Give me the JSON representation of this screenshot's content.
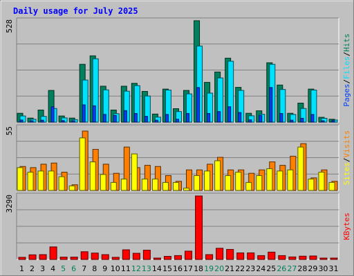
{
  "chart_data": {
    "title": "Daily usage for July 2025",
    "type": "bar",
    "categories": [
      "1",
      "2",
      "3",
      "4",
      "5",
      "6",
      "7",
      "8",
      "9",
      "10",
      "11",
      "12",
      "13",
      "14",
      "15",
      "16",
      "17",
      "18",
      "19",
      "20",
      "21",
      "22",
      "23",
      "24",
      "25",
      "26",
      "27",
      "28",
      "29",
      "30",
      "31"
    ],
    "weekend_days": [
      "5",
      "6",
      "12",
      "13",
      "19",
      "20",
      "26",
      "27"
    ],
    "panels": [
      {
        "name": "hits-files-pages",
        "ymax_label": "528",
        "ylim": [
          0,
          528
        ],
        "series": [
          {
            "name": "Hits",
            "color": "#00805c",
            "values": [
              46,
              21,
              63,
              165,
              32,
              21,
              301,
              345,
              187,
              63,
              187,
              202,
              160,
              42,
              172,
              70,
              165,
              528,
              207,
              261,
              333,
              181,
              46,
              59,
              309,
              193,
              46,
              99,
              172,
              25,
              15
            ]
          },
          {
            "name": "Files",
            "color": "#00e0ff",
            "values": [
              32,
              15,
              30,
              71,
              22,
              13,
              219,
              330,
              168,
              44,
              161,
              190,
              136,
              26,
              167,
              55,
              147,
              396,
              151,
              230,
              317,
              165,
              33,
              41,
              301,
              170,
              40,
              71,
              167,
              20,
              11
            ]
          },
          {
            "name": "Pages",
            "color": "#0040ff",
            "values": [
              11,
              5,
              10,
              80,
              8,
              4,
              90,
              85,
              40,
              35,
              60,
              45,
              30,
              10,
              40,
              15,
              45,
              180,
              45,
              55,
              80,
              50,
              12,
              35,
              180,
              45,
              10,
              20,
              40,
              6,
              3
            ]
          }
        ],
        "legend": [
          "Pages",
          "Files",
          "Hits"
        ]
      },
      {
        "name": "visits-sites",
        "ymax_label": "55",
        "ylim": [
          0,
          55
        ],
        "series": [
          {
            "name": "Visits",
            "color": "#ff8000",
            "values": [
              21,
              20,
              23,
              24,
              16,
              5,
              52,
              36,
              23,
              15,
              38,
              20,
              22,
              21,
              13,
              8,
              18,
              18,
              23,
              29,
              18,
              18,
              15,
              18,
              25,
              22,
              30,
              41,
              11,
              18,
              8
            ]
          },
          {
            "name": "Sites",
            "color": "#ffff00",
            "values": [
              20,
              16,
              17,
              17,
              12,
              4,
              46,
              25,
              14,
              7,
              10,
              32,
              10,
              10,
              7,
              7,
              2,
              13,
              17,
              26,
              13,
              16,
              7,
              13,
              19,
              17,
              18,
              38,
              10,
              16,
              7
            ]
          }
        ],
        "legend": [
          "Sites",
          "Visits"
        ]
      },
      {
        "name": "kbytes",
        "ymax_label": "3290",
        "ylim": [
          0,
          3290
        ],
        "series": [
          {
            "name": "KBytes",
            "color": "#ff0000",
            "values": [
              110,
              240,
              250,
              650,
              120,
              120,
              400,
              330,
              250,
              110,
              500,
              320,
              480,
              70,
              160,
              200,
              430,
              3290,
              250,
              580,
              520,
              340,
              340,
              200,
              380,
              200,
              130,
              170,
              180,
              8,
              8
            ]
          }
        ],
        "legend": [
          "KBytes"
        ]
      }
    ]
  },
  "colors": {
    "background": "#c0c0c0",
    "title": "#0000ff",
    "weekend_label": "#00805c",
    "weekday_label": "#000000"
  }
}
